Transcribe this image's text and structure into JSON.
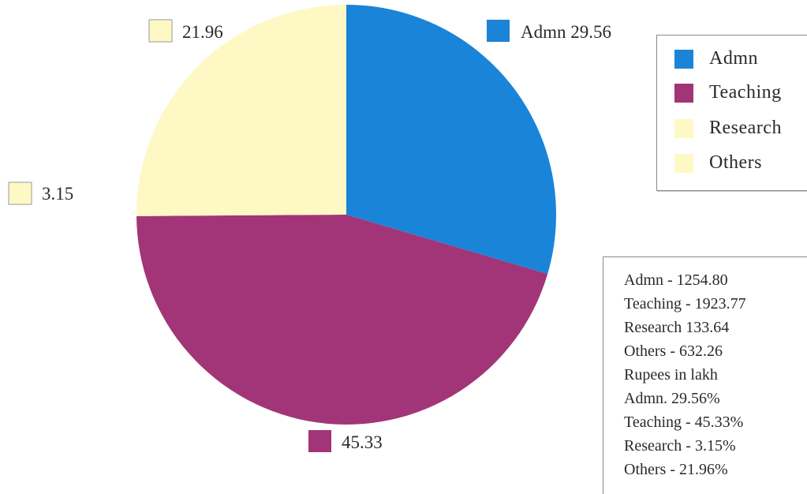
{
  "chart_data": {
    "type": "pie",
    "slices": [
      {
        "label": "Admn",
        "value": 29.56,
        "color": "#1a84d9"
      },
      {
        "label": "Teaching",
        "value": 45.33,
        "color": "#a23577"
      },
      {
        "label": "Research",
        "value": 3.15,
        "color": "#fef8c4"
      },
      {
        "label": "Others",
        "value": 21.96,
        "color": "#fef8c4"
      }
    ],
    "slice_labels": [
      {
        "text": "Admn 29.56",
        "color": "#1a84d9"
      },
      {
        "text": "45.33",
        "color": "#a23577"
      },
      {
        "text": "3.15",
        "color": "#fef8c4"
      },
      {
        "text": "21.96",
        "color": "#fef8c4"
      }
    ],
    "legend": {
      "placement": "right",
      "entries": [
        {
          "label": "Admn",
          "color": "#1a84d9"
        },
        {
          "label": "Teaching",
          "color": "#a23577"
        },
        {
          "label": "Research",
          "color": "#fef8c4"
        },
        {
          "label": "Others",
          "color": "#fef8c4"
        }
      ]
    }
  },
  "summary": {
    "lines": [
      "Admn - 1254.80",
      "Teaching - 1923.77",
      "Research 133.64",
      "Others - 632.26",
      "Rupees in lakh",
      "Admn. 29.56%",
      "Teaching - 45.33%",
      "Research - 3.15%",
      "Others - 21.96%"
    ]
  }
}
